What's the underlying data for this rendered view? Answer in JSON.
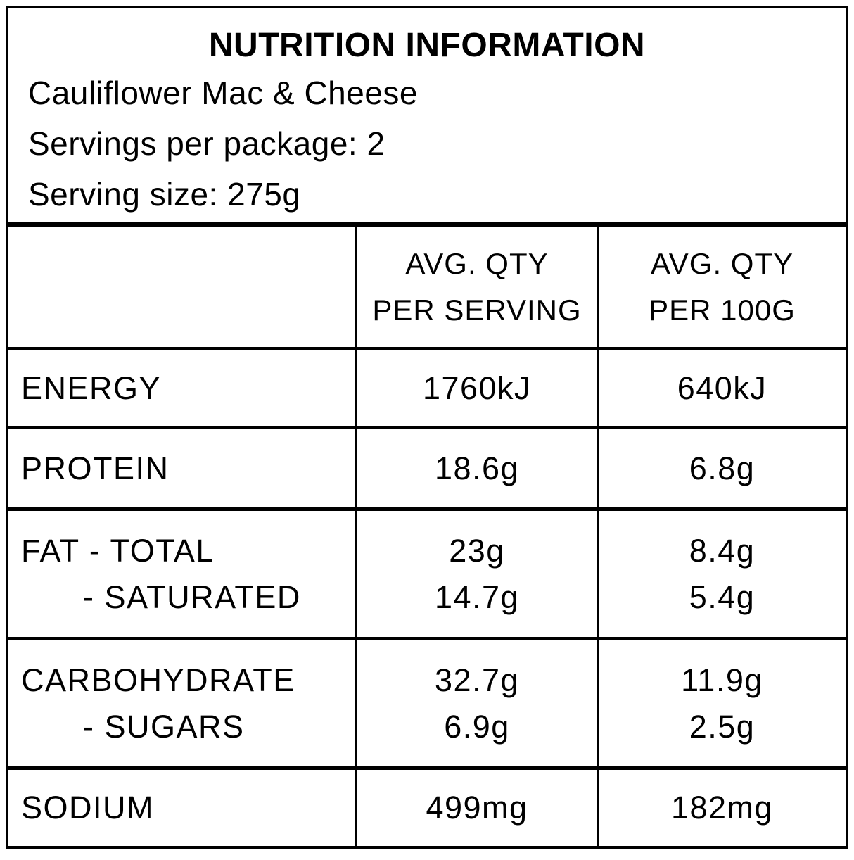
{
  "panel": {
    "title": "NUTRITION INFORMATION",
    "product_name": "Cauliflower Mac & Cheese",
    "servings_per_package": "Servings per package: 2",
    "serving_size": "Serving size: 275g"
  },
  "table": {
    "columns": {
      "per_serving_line1": "AVG. QTY",
      "per_serving_line2": "PER SERVING",
      "per_100g_line1": "AVG. QTY",
      "per_100g_line2": "PER 100G"
    },
    "rows": [
      {
        "label": "ENERGY",
        "per_serving": "1760kJ",
        "per_100g": "640kJ"
      },
      {
        "label": "PROTEIN",
        "per_serving": "18.6g",
        "per_100g": "6.8g"
      },
      {
        "label": "FAT - TOTAL",
        "per_serving": "23g",
        "per_100g": "8.4g",
        "sub": {
          "label": "- SATURATED",
          "per_serving": "14.7g",
          "per_100g": "5.4g"
        }
      },
      {
        "label": "CARBOHYDRATE",
        "per_serving": "32.7g",
        "per_100g": "11.9g",
        "sub": {
          "label": "- SUGARS",
          "per_serving": "6.9g",
          "per_100g": "2.5g"
        }
      },
      {
        "label": "SODIUM",
        "per_serving": "499mg",
        "per_100g": "182mg"
      }
    ]
  },
  "colors": {
    "border": "#000000",
    "text": "#000000",
    "background": "#ffffff"
  }
}
